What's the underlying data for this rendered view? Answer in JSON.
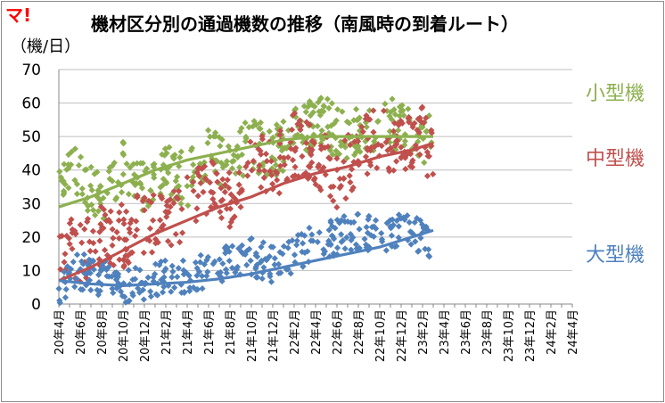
{
  "brand": "マ!",
  "chart_data": {
    "type": "scatter",
    "title": "機材区分別の通過機数の推移（南風時の到着ルート）",
    "ylabel": "（機/日）",
    "xlabel": "",
    "ylim": [
      0,
      70
    ],
    "yticks": [
      0,
      10,
      20,
      30,
      40,
      50,
      60,
      70
    ],
    "x_categories": [
      "20年4月",
      "20年6月",
      "20年8月",
      "20年10月",
      "20年12月",
      "21年2月",
      "21年4月",
      "21年6月",
      "21年8月",
      "21年10月",
      "21年12月",
      "22年2月",
      "22年4月",
      "22年6月",
      "22年8月",
      "22年10月",
      "22年12月",
      "23年2月",
      "23年4月",
      "23年6月",
      "23年8月",
      "23年10月",
      "23年12月",
      "24年2月",
      "24年4月"
    ],
    "grid": true,
    "legend": "inline-right",
    "colors": {
      "small": "#8db04f",
      "medium": "#c0504d",
      "large": "#4f81bd",
      "brand": "#ff0000"
    },
    "series": [
      {
        "name": "小型機",
        "key": "small",
        "trend": [
          [
            0,
            29
          ],
          [
            3,
            32
          ],
          [
            6,
            36
          ],
          [
            9,
            40
          ],
          [
            12,
            43
          ],
          [
            15,
            45
          ],
          [
            18,
            47
          ],
          [
            21,
            49
          ],
          [
            24,
            50
          ],
          [
            27,
            50
          ],
          [
            30,
            50
          ],
          [
            33,
            50
          ],
          [
            35,
            50
          ]
        ]
      },
      {
        "name": "中型機",
        "key": "medium",
        "trend": [
          [
            0,
            7
          ],
          [
            3,
            11
          ],
          [
            6,
            16
          ],
          [
            9,
            21
          ],
          [
            12,
            25
          ],
          [
            15,
            29
          ],
          [
            18,
            32
          ],
          [
            21,
            36
          ],
          [
            24,
            39
          ],
          [
            27,
            41
          ],
          [
            30,
            44
          ],
          [
            33,
            46
          ],
          [
            35,
            48
          ]
        ]
      },
      {
        "name": "大型機",
        "key": "large",
        "trend": [
          [
            0,
            7
          ],
          [
            3,
            6
          ],
          [
            6,
            5.5
          ],
          [
            9,
            6
          ],
          [
            12,
            6.5
          ],
          [
            15,
            7.5
          ],
          [
            18,
            9
          ],
          [
            21,
            11
          ],
          [
            24,
            13
          ],
          [
            27,
            15
          ],
          [
            30,
            17
          ],
          [
            33,
            20
          ],
          [
            35,
            22
          ]
        ]
      }
    ],
    "clusters": [
      {
        "key": "small",
        "points": [
          [
            0,
            40
          ],
          [
            2,
            38
          ],
          [
            4,
            30
          ],
          [
            6,
            42
          ],
          [
            8,
            35
          ],
          [
            10,
            40
          ],
          [
            12,
            37
          ],
          [
            14,
            45
          ],
          [
            16,
            42
          ],
          [
            18,
            48
          ],
          [
            20,
            45
          ],
          [
            22,
            50
          ],
          [
            24,
            55
          ],
          [
            26,
            52
          ],
          [
            28,
            50
          ],
          [
            30,
            55
          ],
          [
            32,
            52
          ],
          [
            34,
            50
          ],
          [
            35,
            48
          ]
        ],
        "spread": 10,
        "n": 400
      },
      {
        "key": "medium",
        "points": [
          [
            0,
            20
          ],
          [
            2,
            15
          ],
          [
            4,
            22
          ],
          [
            6,
            20
          ],
          [
            8,
            25
          ],
          [
            10,
            22
          ],
          [
            12,
            30
          ],
          [
            14,
            35
          ],
          [
            16,
            32
          ],
          [
            18,
            45
          ],
          [
            20,
            40
          ],
          [
            22,
            48
          ],
          [
            24,
            45
          ],
          [
            26,
            38
          ],
          [
            28,
            45
          ],
          [
            30,
            50
          ],
          [
            32,
            48
          ],
          [
            34,
            50
          ],
          [
            35,
            45
          ]
        ],
        "spread": 12,
        "n": 400
      },
      {
        "key": "large",
        "points": [
          [
            0,
            5
          ],
          [
            2,
            10
          ],
          [
            4,
            8
          ],
          [
            6,
            5
          ],
          [
            8,
            6
          ],
          [
            10,
            8
          ],
          [
            12,
            9
          ],
          [
            14,
            10
          ],
          [
            16,
            12
          ],
          [
            18,
            14
          ],
          [
            20,
            12
          ],
          [
            22,
            15
          ],
          [
            24,
            18
          ],
          [
            26,
            20
          ],
          [
            28,
            22
          ],
          [
            30,
            20
          ],
          [
            32,
            22
          ],
          [
            34,
            20
          ],
          [
            35,
            18
          ]
        ],
        "spread": 7,
        "n": 350
      }
    ]
  }
}
